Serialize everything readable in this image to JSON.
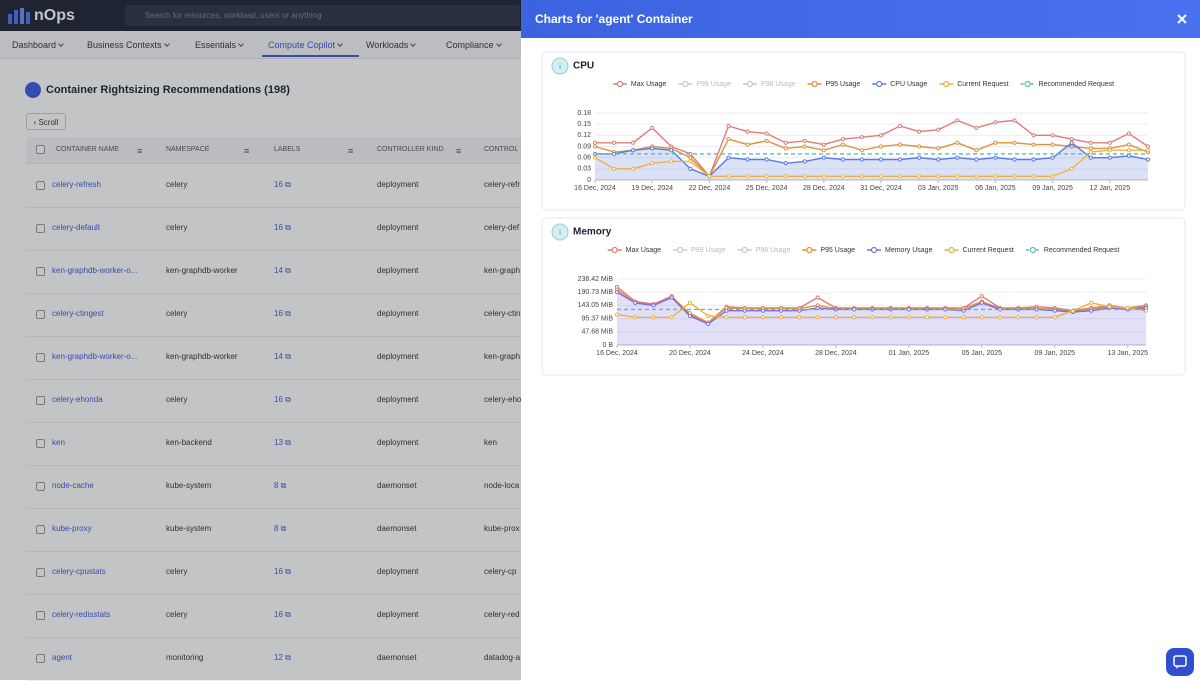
{
  "header": {
    "logo": "nOps",
    "search_placeholder": "Search for resources, workload, users or anything"
  },
  "nav": [
    "Dashboard",
    "Business Contexts",
    "Essentials",
    "Compute Copilot",
    "Workloads",
    "Compliance"
  ],
  "page": {
    "title": "Container Rightsizing Recommendations (198)",
    "scroll_button": "Scroll",
    "columns": [
      "CONTAINER NAME",
      "NAMESPACE",
      "LABELS",
      "CONTROLLER KIND",
      "CONTROL"
    ],
    "rows": [
      [
        "celery-refresh",
        "celery",
        16,
        "deployment",
        "celery-refr"
      ],
      [
        "celery-default",
        "celery",
        16,
        "deployment",
        "celery-def"
      ],
      [
        "ken-graphdb-worker-o...",
        "ken-graphdb-worker",
        14,
        "deployment",
        "ken-graph"
      ],
      [
        "celery-ctingest",
        "celery",
        16,
        "deployment",
        "celery-ctin"
      ],
      [
        "ken-graphdb-worker-o...",
        "ken-graphdb-worker",
        14,
        "deployment",
        "ken-graph"
      ],
      [
        "celery-ehonda",
        "celery",
        16,
        "deployment",
        "celery-eho"
      ],
      [
        "ken",
        "ken-backend",
        13,
        "deployment",
        "ken"
      ],
      [
        "node-cache",
        "kube-system",
        8,
        "daemonset",
        "node-loca"
      ],
      [
        "kube-proxy",
        "kube-system",
        8,
        "daemonset",
        "kube-prox"
      ],
      [
        "celery-cpustats",
        "celery",
        16,
        "deployment",
        "celery-cp"
      ],
      [
        "celery-redisstats",
        "celery",
        16,
        "deployment",
        "celery-red"
      ],
      [
        "agent",
        "monitoring",
        12,
        "daemonset",
        "datadog-a"
      ]
    ]
  },
  "panel": {
    "title": "Charts for 'agent' Container"
  },
  "chart_data": [
    {
      "type": "line",
      "title": "CPU",
      "grid": true,
      "ylim": [
        0,
        0.18
      ],
      "yticks": [
        0,
        0.03,
        0.06,
        0.09,
        0.12,
        0.15,
        0.18
      ],
      "categories": [
        "16 Dec, 2024",
        null,
        null,
        "19 Dec, 2024",
        null,
        null,
        "22 Dec, 2024",
        null,
        null,
        "25 Dec, 2024",
        null,
        null,
        "28 Dec, 2024",
        null,
        null,
        "31 Dec, 2024",
        null,
        null,
        "03 Jan, 2025",
        null,
        null,
        "06 Jan, 2025",
        null,
        null,
        "09 Jan, 2025",
        null,
        null,
        "12 Jan, 2025",
        null,
        null
      ],
      "series": [
        {
          "name": "Max Usage",
          "color": "#e07b7b",
          "values": [
            0.1,
            0.1,
            0.1,
            0.14,
            0.09,
            0.07,
            0.01,
            0.145,
            0.13,
            0.125,
            0.1,
            0.105,
            0.095,
            0.11,
            0.115,
            0.12,
            0.145,
            0.13,
            0.135,
            0.16,
            0.14,
            0.155,
            0.16,
            0.12,
            0.12,
            0.11,
            0.1,
            0.1,
            0.125,
            0.09
          ]
        },
        {
          "name": "P99 Usage",
          "color": "#c8c8c8",
          "hidden": true
        },
        {
          "name": "P98 Usage",
          "color": "#c8c8c8",
          "hidden": true
        },
        {
          "name": "P95 Usage",
          "color": "#e0913a",
          "values": [
            0.09,
            0.075,
            0.08,
            0.09,
            0.085,
            0.06,
            0.01,
            0.11,
            0.095,
            0.105,
            0.085,
            0.09,
            0.08,
            0.095,
            0.08,
            0.09,
            0.095,
            0.09,
            0.085,
            0.1,
            0.08,
            0.1,
            0.1,
            0.095,
            0.095,
            0.09,
            0.085,
            0.085,
            0.095,
            0.075
          ]
        },
        {
          "name": "CPU Usage",
          "color": "#5b7be0",
          "area": true,
          "values": [
            0.07,
            0.07,
            0.08,
            0.085,
            0.08,
            0.03,
            0.01,
            0.06,
            0.055,
            0.055,
            0.045,
            0.05,
            0.06,
            0.055,
            0.055,
            0.055,
            0.055,
            0.06,
            0.055,
            0.06,
            0.055,
            0.06,
            0.055,
            0.055,
            0.06,
            0.1,
            0.06,
            0.06,
            0.065,
            0.055
          ]
        },
        {
          "name": "Current Request",
          "color": "#f0b040",
          "values": [
            0.06,
            0.03,
            0.03,
            0.045,
            0.05,
            0.05,
            0.01,
            0.01,
            0.01,
            0.01,
            0.01,
            0.01,
            0.01,
            0.01,
            0.01,
            0.01,
            0.01,
            0.01,
            0.01,
            0.01,
            0.01,
            0.01,
            0.01,
            0.01,
            0.01,
            0.03,
            0.075,
            0.08,
            0.08,
            0.08
          ]
        },
        {
          "name": "Recommended Request",
          "color": "#5bbcbc",
          "dashed": true,
          "values": [
            0.07,
            0.07,
            0.07,
            0.07,
            0.07,
            0.07,
            0.07,
            0.07,
            0.07,
            0.07,
            0.07,
            0.07,
            0.07,
            0.07,
            0.07,
            0.07,
            0.07,
            0.07,
            0.07,
            0.07,
            0.07,
            0.07,
            0.07,
            0.07,
            0.07,
            0.07,
            0.07,
            0.07,
            0.07,
            0.07
          ]
        }
      ]
    },
    {
      "type": "line",
      "title": "Memory",
      "grid": true,
      "ylim": [
        0,
        250000000
      ],
      "yticks": [
        {
          "value": 0,
          "label": "0 B"
        },
        {
          "value": 50000000,
          "label": "47.68 MiB"
        },
        {
          "value": 100000000,
          "label": "95.37 MiB"
        },
        {
          "value": 150000000,
          "label": "143.05 MiB"
        },
        {
          "value": 200000000,
          "label": "190.73 MiB"
        },
        {
          "value": 250000000,
          "label": "238.42 MiB"
        }
      ],
      "categories": [
        "16 Dec, 2024",
        null,
        null,
        null,
        "20 Dec, 2024",
        null,
        null,
        null,
        "24 Dec, 2024",
        null,
        null,
        null,
        "28 Dec, 2024",
        null,
        null,
        null,
        "01 Jan, 2025",
        null,
        null,
        null,
        "05 Jan, 2025",
        null,
        null,
        null,
        "09 Jan, 2025",
        null,
        null,
        null,
        "13 Jan, 2025",
        null
      ],
      "series": [
        {
          "name": "Max Usage",
          "color": "#e07b7b",
          "values": [
            220000000,
            165000000,
            155000000,
            185000000,
            115000000,
            85000000,
            145000000,
            140000000,
            140000000,
            140000000,
            140000000,
            180000000,
            140000000,
            140000000,
            140000000,
            140000000,
            140000000,
            140000000,
            140000000,
            140000000,
            185000000,
            140000000,
            140000000,
            145000000,
            140000000,
            130000000,
            140000000,
            150000000,
            140000000,
            150000000
          ]
        },
        {
          "name": "P99 Usage",
          "color": "#c8c8c8",
          "hidden": true
        },
        {
          "name": "P98 Usage",
          "color": "#c8c8c8",
          "hidden": true
        },
        {
          "name": "P95 Usage",
          "color": "#e0913a",
          "values": [
            210000000,
            160000000,
            150000000,
            180000000,
            120000000,
            85000000,
            140000000,
            138000000,
            138000000,
            138000000,
            138000000,
            150000000,
            138000000,
            138000000,
            138000000,
            138000000,
            138000000,
            138000000,
            138000000,
            138000000,
            165000000,
            138000000,
            140000000,
            138000000,
            135000000,
            128000000,
            135000000,
            145000000,
            138000000,
            145000000
          ]
        },
        {
          "name": "Memory Usage",
          "color": "#7b6fe0",
          "area": true,
          "values": [
            200000000,
            160000000,
            150000000,
            180000000,
            110000000,
            80000000,
            130000000,
            130000000,
            130000000,
            130000000,
            130000000,
            140000000,
            135000000,
            135000000,
            135000000,
            135000000,
            135000000,
            135000000,
            135000000,
            130000000,
            160000000,
            135000000,
            135000000,
            135000000,
            130000000,
            125000000,
            130000000,
            140000000,
            135000000,
            140000000
          ]
        },
        {
          "name": "Current Request",
          "color": "#f0b040",
          "values": [
            115000000,
            105000000,
            105000000,
            105000000,
            160000000,
            110000000,
            105000000,
            105000000,
            105000000,
            105000000,
            105000000,
            105000000,
            105000000,
            105000000,
            105000000,
            105000000,
            105000000,
            105000000,
            105000000,
            105000000,
            105000000,
            105000000,
            105000000,
            105000000,
            105000000,
            130000000,
            160000000,
            145000000,
            140000000,
            130000000
          ]
        },
        {
          "name": "Recommended Request",
          "color": "#5bbcbc",
          "dashed": true,
          "values": [
            135000000,
            135000000,
            135000000,
            135000000,
            135000000,
            135000000,
            135000000,
            135000000,
            135000000,
            135000000,
            135000000,
            135000000,
            135000000,
            135000000,
            135000000,
            135000000,
            135000000,
            135000000,
            135000000,
            135000000,
            135000000,
            135000000,
            135000000,
            135000000,
            135000000,
            135000000,
            135000000,
            135000000,
            135000000,
            135000000
          ]
        }
      ]
    }
  ]
}
